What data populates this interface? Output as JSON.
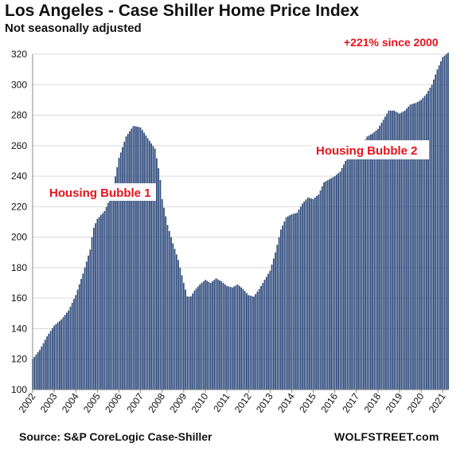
{
  "title": "Los Angeles - Case Shiller Home Price Index",
  "subtitle": "Not seasonally adjusted",
  "source": "Source: S&P CoreLogic Case-Shiller",
  "brand": "WOLFSTREET.com",
  "colors": {
    "bar": "#2f4b7c",
    "annotation": "#e8121c",
    "grid": "#d9d9d9",
    "text": "#111111"
  },
  "chart_data": {
    "type": "area",
    "title": "Los Angeles - Case Shiller Home Price Index",
    "subtitle": "Not seasonally adjusted",
    "xlabel": "",
    "ylabel": "",
    "xlim": [
      2002.0,
      2021.25
    ],
    "ylim": [
      100,
      320
    ],
    "y_ticks": [
      100,
      120,
      140,
      160,
      180,
      200,
      220,
      240,
      260,
      280,
      300,
      320
    ],
    "x_ticks": [
      "2002",
      "2003",
      "2004",
      "2005",
      "2006",
      "2007",
      "2008",
      "2009",
      "2010",
      "2011",
      "2012",
      "2013",
      "2014",
      "2015",
      "2016",
      "2017",
      "2018",
      "2019",
      "2020",
      "2021"
    ],
    "grid": "horizontal",
    "legend": "none",
    "series_shape": "monthly columns",
    "series": [
      {
        "points": [
          [
            2002.0,
            120
          ],
          [
            2002.33,
            126
          ],
          [
            2002.67,
            135
          ],
          [
            2003.0,
            142
          ],
          [
            2003.33,
            146
          ],
          [
            2003.67,
            152
          ],
          [
            2004.0,
            162
          ],
          [
            2004.33,
            176
          ],
          [
            2004.67,
            192
          ],
          [
            2004.8,
            205
          ],
          [
            2005.0,
            212
          ],
          [
            2005.33,
            217
          ],
          [
            2005.67,
            228
          ],
          [
            2006.0,
            252
          ],
          [
            2006.33,
            266
          ],
          [
            2006.67,
            273
          ],
          [
            2007.0,
            272
          ],
          [
            2007.33,
            265
          ],
          [
            2007.67,
            258
          ],
          [
            2007.9,
            240
          ],
          [
            2008.0,
            225
          ],
          [
            2008.25,
            208
          ],
          [
            2008.5,
            196
          ],
          [
            2008.75,
            185
          ],
          [
            2009.0,
            170
          ],
          [
            2009.17,
            161
          ],
          [
            2009.33,
            161
          ],
          [
            2009.5,
            165
          ],
          [
            2009.75,
            169
          ],
          [
            2010.0,
            172
          ],
          [
            2010.25,
            170
          ],
          [
            2010.5,
            173
          ],
          [
            2010.75,
            171
          ],
          [
            2011.0,
            168
          ],
          [
            2011.25,
            167
          ],
          [
            2011.5,
            169
          ],
          [
            2011.75,
            166
          ],
          [
            2012.0,
            162
          ],
          [
            2012.25,
            161
          ],
          [
            2012.5,
            166
          ],
          [
            2012.75,
            172
          ],
          [
            2013.0,
            178
          ],
          [
            2013.25,
            190
          ],
          [
            2013.5,
            205
          ],
          [
            2013.75,
            213
          ],
          [
            2014.0,
            215
          ],
          [
            2014.25,
            216
          ],
          [
            2014.5,
            222
          ],
          [
            2014.75,
            226
          ],
          [
            2015.0,
            225
          ],
          [
            2015.25,
            228
          ],
          [
            2015.5,
            236
          ],
          [
            2015.75,
            238
          ],
          [
            2016.0,
            240
          ],
          [
            2016.25,
            243
          ],
          [
            2016.5,
            250
          ],
          [
            2016.75,
            254
          ],
          [
            2017.0,
            256
          ],
          [
            2017.25,
            260
          ],
          [
            2017.5,
            266
          ],
          [
            2017.75,
            268
          ],
          [
            2018.0,
            271
          ],
          [
            2018.25,
            277
          ],
          [
            2018.5,
            283
          ],
          [
            2018.75,
            283
          ],
          [
            2019.0,
            281
          ],
          [
            2019.25,
            283
          ],
          [
            2019.5,
            287
          ],
          [
            2019.75,
            288
          ],
          [
            2020.0,
            290
          ],
          [
            2020.25,
            294
          ],
          [
            2020.5,
            300
          ],
          [
            2020.75,
            310
          ],
          [
            2021.0,
            318
          ],
          [
            2021.25,
            321
          ]
        ]
      }
    ],
    "annotations": [
      {
        "text": "+221% since 2000"
      },
      {
        "text": "Housing Bubble 1"
      },
      {
        "text": "Housing Bubble 2"
      }
    ]
  }
}
